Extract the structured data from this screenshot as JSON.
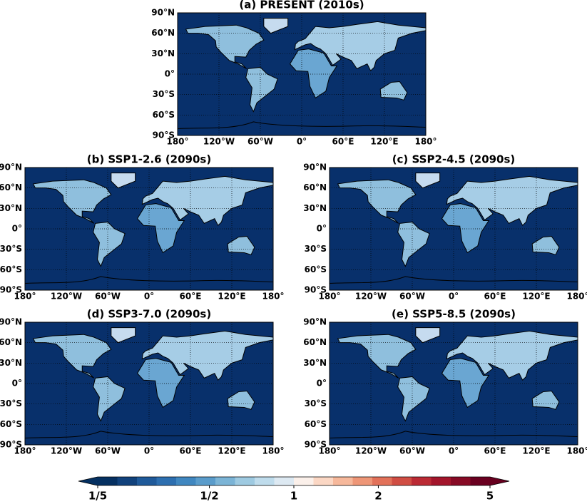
{
  "panels": [
    {
      "title": "(a) PRESENT (2010s)"
    },
    {
      "title": "(b) SSP1-2.6 (2090s)"
    },
    {
      "title": "(c) SSP2-4.5 (2090s)"
    },
    {
      "title": "(d) SSP3-7.0 (2090s)"
    },
    {
      "title": "(e) SSP5-8.5 (2090s)"
    }
  ],
  "map_axes": {
    "xlim": [
      -180,
      180
    ],
    "ylim": [
      -90,
      90
    ],
    "xticks": [
      {
        "value": -180,
        "label": "180°"
      },
      {
        "value": -120,
        "label": "120°W"
      },
      {
        "value": -60,
        "label": "60°W"
      },
      {
        "value": 0,
        "label": "0°"
      },
      {
        "value": 60,
        "label": "60°E"
      },
      {
        "value": 120,
        "label": "120°E"
      },
      {
        "value": 180,
        "label": "180°"
      }
    ],
    "yticks": [
      {
        "value": 90,
        "label": "90°N"
      },
      {
        "value": 60,
        "label": "60°N"
      },
      {
        "value": 30,
        "label": "30°N"
      },
      {
        "value": 0,
        "label": "0°"
      },
      {
        "value": -30,
        "label": "30°S"
      },
      {
        "value": -60,
        "label": "60°S"
      },
      {
        "value": -90,
        "label": "90°S"
      }
    ],
    "grid": true,
    "ocean_color": "#08306b"
  },
  "colorbar": {
    "scale": "log",
    "lim": [
      0.2,
      5
    ],
    "ticks": [
      {
        "value": 0.2,
        "label": "1/5"
      },
      {
        "value": 0.5,
        "label": "1/2"
      },
      1,
      2,
      5
    ],
    "colors": [
      "#053061",
      "#11427c",
      "#1f5a9a",
      "#2d6fb0",
      "#4087c0",
      "#5a9ccb",
      "#7bb4d6",
      "#9ecae1",
      "#bfdcec",
      "#dde9f2",
      "#fbf0ea",
      "#fbd7c4",
      "#f6b89b",
      "#ee9677",
      "#e27159",
      "#d04d43",
      "#bb2a34",
      "#a3152b",
      "#870a25",
      "#6a0020"
    ],
    "under_color": "#053061",
    "over_color": "#67001f"
  }
}
